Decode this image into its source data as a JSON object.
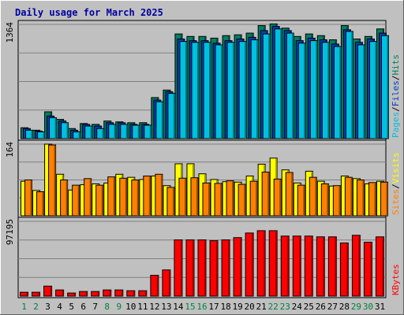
{
  "chart_data": {
    "type": "bar",
    "title": "Daily usage for March 2025",
    "days": [
      "1",
      "2",
      "3",
      "4",
      "5",
      "6",
      "7",
      "8",
      "9",
      "10",
      "11",
      "12",
      "13",
      "14",
      "15",
      "16",
      "17",
      "18",
      "19",
      "20",
      "21",
      "22",
      "23",
      "24",
      "25",
      "26",
      "27",
      "28",
      "29",
      "30",
      "31"
    ],
    "weekend_days": [
      "1",
      "2",
      "8",
      "9",
      "15",
      "16",
      "22",
      "23",
      "29",
      "30"
    ],
    "panels": [
      {
        "id": "hits",
        "ymax": 1364,
        "ymax_label": "1364",
        "side_labels": [
          {
            "text": "Pages",
            "color": "#00c0e0"
          },
          {
            "text": "/",
            "color": "#000000"
          },
          {
            "text": "Files",
            "color": "#0040c0"
          },
          {
            "text": "/",
            "color": "#000000"
          },
          {
            "text": "Hits",
            "color": "#008060"
          }
        ],
        "series": [
          {
            "name": "Hits",
            "color": "#008060",
            "values": [
              130,
              100,
              320,
              230,
              120,
              180,
              170,
              210,
              200,
              190,
              190,
              490,
              580,
              1250,
              1220,
              1220,
              1200,
              1230,
              1240,
              1260,
              1350,
              1370,
              1320,
              1220,
              1250,
              1230,
              1180,
              1350,
              1190,
              1220,
              1310
            ]
          },
          {
            "name": "Files",
            "color": "#0040c0",
            "values": [
              120,
              90,
              270,
              210,
              100,
              170,
              150,
              190,
              190,
              170,
              170,
              460,
              560,
              1190,
              1170,
              1170,
              1140,
              1170,
              1190,
              1210,
              1290,
              1340,
              1290,
              1170,
              1200,
              1180,
              1130,
              1300,
              1150,
              1190,
              1260
            ]
          },
          {
            "name": "Pages",
            "color": "#00c0e0",
            "values": [
              100,
              80,
              250,
              190,
              80,
              150,
              120,
              170,
              170,
              160,
              160,
              440,
              540,
              1160,
              1150,
              1150,
              1120,
              1150,
              1160,
              1180,
              1250,
              1310,
              1260,
              1140,
              1170,
              1150,
              1100,
              1280,
              1120,
              1160,
              1230
            ]
          }
        ]
      },
      {
        "id": "visits",
        "ymax": 164,
        "ymax_label": "164",
        "side_labels": [
          {
            "text": "Sites",
            "color": "#ff8000"
          },
          {
            "text": "/",
            "color": "#000000"
          },
          {
            "text": "Visits",
            "color": "#ffff00"
          }
        ],
        "series": [
          {
            "name": "Visits",
            "color": "#ffff00",
            "values": [
              79,
              58,
              164,
              95,
              59,
              71,
              73,
              75,
              95,
              88,
              83,
              91,
              69,
              119,
              119,
              96,
              83,
              78,
              77,
              91,
              118,
              132,
              105,
              75,
              102,
              79,
              68,
              91,
              85,
              73,
              79
            ]
          },
          {
            "name": "Sites",
            "color": "#ff8000",
            "values": [
              82,
              55,
              162,
              82,
              70,
              85,
              70,
              89,
              86,
              82,
              91,
              95,
              65,
              86,
              87,
              75,
              74,
              80,
              72,
              79,
              100,
              84,
              99,
              70,
              88,
              73,
              69,
              88,
              82,
              76,
              77
            ]
          }
        ]
      },
      {
        "id": "kbytes",
        "ymax": 97195,
        "ymax_label": "97195",
        "side_labels": [
          {
            "text": "KBytes",
            "color": "#ff0000"
          }
        ],
        "series": [
          {
            "name": "KBytes",
            "color": "#ff0000",
            "values": [
              5000,
              5000,
              13000,
              8000,
              4000,
              6000,
              6000,
              8000,
              8000,
              7000,
              7000,
              27000,
              34000,
              73000,
              73000,
              73000,
              72000,
              73000,
              76000,
              82000,
              85000,
              85000,
              78000,
              78000,
              78000,
              77000,
              77000,
              69000,
              79000,
              70000,
              77000
            ]
          }
        ]
      }
    ]
  }
}
